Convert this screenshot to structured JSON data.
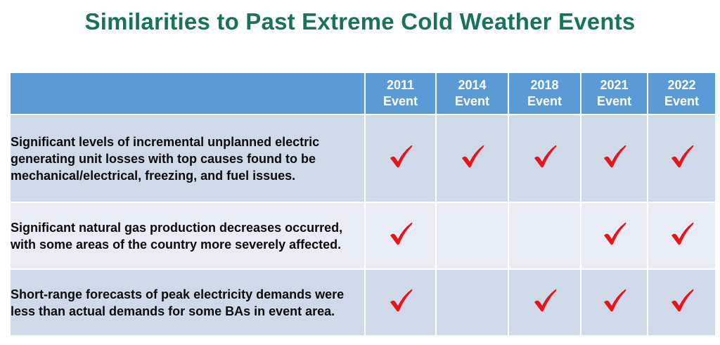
{
  "title": "Similarities to Past Extreme Cold Weather Events",
  "table": {
    "columns": [
      {
        "year": "2011",
        "label": "Event"
      },
      {
        "year": "2014",
        "label": "Event"
      },
      {
        "year": "2018",
        "label": "Event"
      },
      {
        "year": "2021",
        "label": "Event"
      },
      {
        "year": "2022",
        "label": "Event"
      }
    ],
    "rows": [
      {
        "description": "Significant levels of incremental unplanned electric generating unit losses with top causes found to be mechanical/electrical, freezing, and fuel issues.",
        "checks": [
          true,
          true,
          true,
          true,
          true
        ]
      },
      {
        "description": "Significant natural gas production decreases occurred, with some areas of the country more severely affected.",
        "checks": [
          true,
          false,
          false,
          true,
          true
        ]
      },
      {
        "description": "Short-range forecasts of peak electricity demands were less than actual demands for some BAs in event area.",
        "checks": [
          true,
          false,
          true,
          true,
          true
        ]
      }
    ]
  },
  "icons": {
    "check": "checkmark-icon"
  },
  "colors": {
    "title": "#17735c",
    "header_bg": "#5b9bd5",
    "row_dark": "#cfd9e8",
    "row_light": "#e8edf5",
    "check": "#e8141b"
  }
}
